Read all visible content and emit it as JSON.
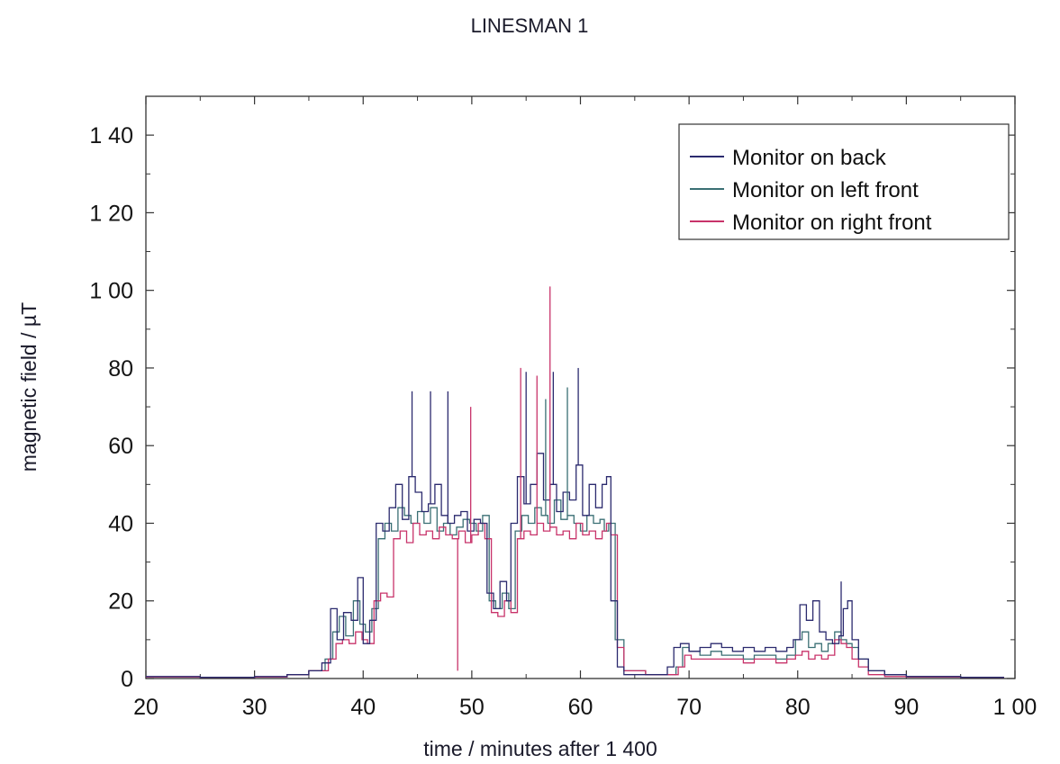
{
  "chart_data": {
    "type": "line",
    "title": "LINESMAN 1",
    "xlabel": "time  /  minutes after 1 400",
    "ylabel": "magnetic field  /  µT",
    "xlim": [
      20,
      100
    ],
    "ylim": [
      0,
      150
    ],
    "xticks": [
      20,
      30,
      40,
      50,
      60,
      70,
      80,
      90,
      100
    ],
    "xtick_labels": [
      "20",
      "30",
      "40",
      "50",
      "60",
      "70",
      "80",
      "90",
      "1 00"
    ],
    "yticks": [
      0,
      20,
      40,
      60,
      80,
      100,
      120,
      140
    ],
    "ytick_labels": [
      "0",
      "20",
      "40",
      "60",
      "80",
      "1 00",
      "1 20",
      "1 40"
    ],
    "grid": false,
    "legend_position": "top-right",
    "series": [
      {
        "name": "Monitor on back",
        "color": "#2b2a6e",
        "x": [
          20,
          25,
          30,
          33,
          35,
          36.2,
          37,
          37.6,
          38.2,
          38.9,
          39.5,
          40.0,
          40.6,
          41.2,
          41.8,
          42.4,
          43.0,
          43.6,
          44.2,
          44.8,
          45.4,
          46.0,
          46.6,
          47.2,
          47.8,
          48.4,
          49.0,
          49.6,
          50.2,
          50.8,
          51.4,
          52.0,
          52.6,
          53.2,
          53.6,
          54.2,
          54.8,
          55.4,
          56.0,
          56.6,
          57.2,
          57.8,
          58.4,
          59.0,
          59.6,
          60.2,
          60.8,
          61.4,
          62.0,
          62.4,
          62.8,
          63.4,
          64,
          66,
          68,
          68.6,
          69.2,
          70,
          71,
          72,
          73,
          74,
          75,
          76,
          77,
          78,
          79,
          79.6,
          80.2,
          80.8,
          81.4,
          82,
          82.6,
          83.2,
          83.8,
          84.2,
          84.6,
          85,
          85.6,
          86.5,
          88,
          90,
          95,
          99
        ],
        "y": [
          0.5,
          0.3,
          0.5,
          1,
          2,
          4,
          18,
          10,
          17,
          15,
          26,
          9,
          15,
          40,
          38,
          44,
          50,
          41,
          52,
          48,
          43,
          45,
          50,
          42,
          40,
          42,
          43,
          38,
          41,
          40,
          22,
          18,
          25,
          20,
          40,
          52,
          45,
          50,
          58,
          46,
          50,
          43,
          48,
          46,
          55,
          42,
          50,
          44,
          50,
          52,
          20,
          3,
          1,
          1,
          3,
          8,
          9,
          7,
          8,
          9,
          8,
          7,
          8,
          7,
          8,
          7,
          8,
          10,
          19,
          15,
          20,
          12,
          10,
          9,
          11,
          18,
          20,
          10,
          5,
          2,
          1,
          0.5,
          0.3,
          0.3
        ]
      },
      {
        "name": "Monitor on left front",
        "color": "#3a6f74",
        "x": [
          20,
          25,
          30,
          33,
          35,
          36.5,
          37.2,
          37.8,
          38.4,
          39.1,
          39.7,
          40.2,
          40.8,
          41.4,
          42.0,
          42.6,
          43.2,
          43.8,
          44.4,
          45.0,
          45.6,
          46.2,
          46.8,
          47.4,
          48.0,
          48.6,
          49.2,
          49.8,
          50.4,
          51.0,
          51.6,
          52.2,
          52.8,
          53.4,
          54.0,
          54.6,
          55.2,
          55.8,
          56.4,
          57.0,
          57.6,
          58.2,
          58.8,
          59.4,
          60.0,
          60.6,
          61.2,
          61.8,
          62.2,
          62.6,
          63.2,
          64,
          66,
          68,
          68.8,
          69.4,
          70,
          71,
          72,
          73,
          74,
          75,
          76,
          77,
          78,
          79,
          79.8,
          80.4,
          81,
          81.6,
          82.2,
          82.8,
          83.4,
          84,
          84.5,
          85,
          85.6,
          86.5,
          88,
          90,
          95,
          99
        ],
        "y": [
          0.4,
          0.3,
          0.4,
          1,
          2,
          5,
          12,
          16,
          11,
          20,
          14,
          12,
          18,
          36,
          40,
          38,
          44,
          42,
          40,
          43,
          40,
          44,
          38,
          40,
          37,
          39,
          41,
          40,
          38,
          42,
          20,
          18,
          22,
          18,
          38,
          42,
          40,
          44,
          42,
          40,
          46,
          41,
          42,
          40,
          38,
          42,
          40,
          41,
          38,
          40,
          10,
          2,
          1,
          1,
          3,
          8,
          7,
          6,
          7,
          6,
          6,
          5,
          6,
          6,
          5,
          6,
          10,
          12,
          8,
          9,
          7,
          9,
          12,
          10,
          9,
          8,
          5,
          2,
          1,
          0.5,
          0.3,
          0.3
        ]
      },
      {
        "name": "Monitor on right front",
        "color": "#c8336a",
        "x": [
          20,
          25,
          30,
          33,
          35,
          36.8,
          37.5,
          38.1,
          38.7,
          39.3,
          39.9,
          40.4,
          41.0,
          41.6,
          42.2,
          42.8,
          43.4,
          44.0,
          44.6,
          45.2,
          45.8,
          46.4,
          47.0,
          47.6,
          48.2,
          48.8,
          49.4,
          50.0,
          50.6,
          51.2,
          51.8,
          52.4,
          53.0,
          53.6,
          54.2,
          54.8,
          55.4,
          56.0,
          56.6,
          57.2,
          57.8,
          58.4,
          59.0,
          59.6,
          60.2,
          60.8,
          61.4,
          62.0,
          62.4,
          62.8,
          63.4,
          64,
          66,
          68,
          69,
          69.6,
          70.2,
          71,
          72,
          73,
          74,
          75,
          76,
          77,
          78,
          79,
          79.8,
          80.4,
          81,
          81.6,
          82.2,
          82.8,
          83.4,
          84,
          84.5,
          85,
          85.6,
          86.5,
          88,
          90,
          95,
          99
        ],
        "y": [
          0.4,
          0.3,
          0.4,
          1,
          2,
          5,
          9,
          10,
          9,
          12,
          10,
          9,
          20,
          22,
          21,
          36,
          38,
          35,
          40,
          37,
          38,
          36,
          39,
          37,
          36,
          38,
          35,
          37,
          40,
          36,
          17,
          16,
          20,
          17,
          36,
          38,
          37,
          40,
          38,
          39,
          37,
          38,
          36,
          40,
          37,
          38,
          36,
          38,
          40,
          37,
          8,
          2,
          1,
          1,
          3,
          6,
          5,
          5,
          5,
          5,
          5,
          4,
          5,
          5,
          4,
          5,
          6,
          7,
          5,
          6,
          5,
          6,
          10,
          9,
          8,
          5,
          3,
          1,
          0.5,
          0.4,
          0.3,
          0.3
        ]
      }
    ],
    "spikes": [
      {
        "series": 0,
        "x": 44.5,
        "y": 74
      },
      {
        "series": 0,
        "x": 46.2,
        "y": 74
      },
      {
        "series": 0,
        "x": 47.8,
        "y": 74
      },
      {
        "series": 0,
        "x": 55.0,
        "y": 79
      },
      {
        "series": 0,
        "x": 57.5,
        "y": 79
      },
      {
        "series": 0,
        "x": 59.8,
        "y": 80
      },
      {
        "series": 0,
        "x": 84.0,
        "y": 25
      },
      {
        "series": 1,
        "x": 56.8,
        "y": 72
      },
      {
        "series": 1,
        "x": 58.8,
        "y": 75
      },
      {
        "series": 2,
        "x": 57.2,
        "y": 101
      },
      {
        "series": 2,
        "x": 49.9,
        "y": 70
      },
      {
        "series": 2,
        "x": 54.5,
        "y": 80
      },
      {
        "series": 2,
        "x": 48.7,
        "y": 2
      },
      {
        "series": 2,
        "x": 56.0,
        "y": 78
      }
    ]
  }
}
